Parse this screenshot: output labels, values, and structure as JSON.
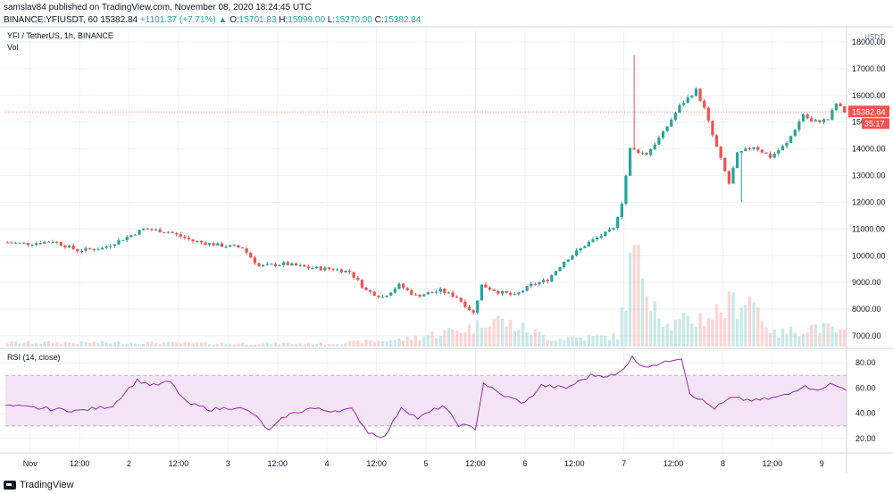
{
  "header": {
    "publisher_line": "samslav84 published on TradingView.com, November 08, 2020 18:24:45 UTC",
    "symbol": "BINANCE:YFIUSDT, 60",
    "last": "15382.84",
    "change": "+1101.37 (+7.71%)",
    "open_label": "O:",
    "open": "15701.83",
    "high_label": "H:",
    "high": "15999.00",
    "low_label": "L:",
    "low": "15270.00",
    "close_label": "C:",
    "close": "15382.84"
  },
  "legend": {
    "title": "YFI / TetherUS, 1h, BINANCE",
    "volume": "Vol",
    "rsi": "RSI (14, close)"
  },
  "price_axis": {
    "currency": "USDT",
    "last_price_label": "15382.84",
    "countdown_label": "35:17",
    "tick_labels": [
      "18000.00",
      "17000.00",
      "16000.00",
      "15000.00",
      "14000.00",
      "13000.00",
      "12000.00",
      "11000.00",
      "10000.00",
      "9000.00",
      "8000.00",
      "7000.00"
    ]
  },
  "rsi_axis": {
    "tick_labels": [
      "80.00",
      "60.00",
      "40.00",
      "20.00"
    ]
  },
  "time_axis": {
    "tick_labels": [
      "Nov",
      "12:00",
      "2",
      "12:00",
      "3",
      "12:00",
      "4",
      "12:00",
      "5",
      "12:00",
      "6",
      "12:00",
      "7",
      "12:00",
      "8",
      "12:00",
      "9"
    ]
  },
  "footer": {
    "brand": "TradingView"
  },
  "colors": {
    "up": "#26a69a",
    "down": "#ef5350",
    "rsi_line": "#9c27b0",
    "rsi_band": "#f3e5f5",
    "grid": "#f0f3fa"
  },
  "chart_data": {
    "type": "candlestick",
    "interval": "1h",
    "x_range": [
      "Oct 31 18:00",
      "Nov 9 06:00"
    ],
    "price_range": [
      6600,
      18500
    ],
    "last_price": 15382.84,
    "rsi_range": [
      10,
      90
    ],
    "rsi_band": [
      30,
      70
    ],
    "price_series": [
      [
        "Oct 31 18:00",
        10500
      ],
      [
        "Nov 1 00:00",
        10450
      ],
      [
        "Nov 1 06:00",
        10550
      ],
      [
        "Nov 1 12:00",
        10200
      ],
      [
        "Nov 1 18:00",
        10280
      ],
      [
        "Nov 2 00:00",
        10700
      ],
      [
        "Nov 2 04:00",
        11000
      ],
      [
        "Nov 2 10:00",
        10900
      ],
      [
        "Nov 2 16:00",
        10550
      ],
      [
        "Nov 2 22:00",
        10400
      ],
      [
        "Nov 3 04:00",
        10300
      ],
      [
        "Nov 3 08:00",
        9600
      ],
      [
        "Nov 3 14:00",
        9700
      ],
      [
        "Nov 3 20:00",
        9550
      ],
      [
        "Nov 4 02:00",
        9500
      ],
      [
        "Nov 4 06:00",
        9400
      ],
      [
        "Nov 4 10:00",
        8700
      ],
      [
        "Nov 4 14:00",
        8450
      ],
      [
        "Nov 4 18:00",
        8900
      ],
      [
        "Nov 4 22:00",
        8500
      ],
      [
        "Nov 5 04:00",
        8700
      ],
      [
        "Nov 5 08:00",
        8450
      ],
      [
        "Nov 5 12:00",
        7850
      ],
      [
        "Nov 5 14:00",
        8900
      ],
      [
        "Nov 5 18:00",
        8650
      ],
      [
        "Nov 5 22:00",
        8500
      ],
      [
        "Nov 6 02:00",
        8900
      ],
      [
        "Nov 6 06:00",
        9100
      ],
      [
        "Nov 6 10:00",
        9800
      ],
      [
        "Nov 6 16:00",
        10500
      ],
      [
        "Nov 6 22:00",
        11000
      ],
      [
        "Nov 7 00:00",
        12000
      ],
      [
        "Nov 7 02:00",
        14000
      ],
      [
        "Nov 7 06:00",
        13800
      ],
      [
        "Nov 7 10:00",
        14600
      ],
      [
        "Nov 7 14:00",
        15600
      ],
      [
        "Nov 7 18:00",
        16200
      ],
      [
        "Nov 7 20:00",
        15500
      ],
      [
        "Nov 7 22:00",
        14500
      ],
      [
        "Nov 8 02:00",
        12700
      ],
      [
        "Nov 8 04:00",
        13800
      ],
      [
        "Nov 8 08:00",
        14100
      ],
      [
        "Nov 8 12:00",
        13700
      ],
      [
        "Nov 8 16:00",
        14200
      ],
      [
        "Nov 8 20:00",
        15300
      ],
      [
        "Nov 8 22:00",
        15000
      ],
      [
        "Nov 9 02:00",
        15100
      ],
      [
        "Nov 9 04:00",
        15700
      ],
      [
        "Nov 9 06:00",
        15382.84
      ]
    ],
    "price_extremes": [
      [
        "Nov 7 02:00",
        17500
      ],
      [
        "Nov 8 04:00",
        12000
      ]
    ],
    "volume_series": [
      [
        "Nov 1 00:00",
        0.04
      ],
      [
        "Nov 2 00:00",
        0.04
      ],
      [
        "Nov 3 00:00",
        0.03
      ],
      [
        "Nov 4 00:00",
        0.03
      ],
      [
        "Nov 4 18:00",
        0.07
      ],
      [
        "Nov 5 12:00",
        0.2
      ],
      [
        "Nov 5 14:00",
        0.3
      ],
      [
        "Nov 6 06:00",
        0.08
      ],
      [
        "Nov 6 22:00",
        0.1
      ],
      [
        "Nov 7 02:00",
        0.95
      ],
      [
        "Nov 7 10:00",
        0.2
      ],
      [
        "Nov 7 20:00",
        0.3
      ],
      [
        "Nov 8 06:00",
        0.5
      ],
      [
        "Nov 8 12:00",
        0.12
      ],
      [
        "Nov 8 22:00",
        0.2
      ],
      [
        "Nov 9 06:00",
        0.12
      ]
    ],
    "rsi_series": [
      [
        "Oct 31 18:00",
        46
      ],
      [
        "Nov 1 02:00",
        44
      ],
      [
        "Nov 1 12:00",
        42
      ],
      [
        "Nov 1 20:00",
        46
      ],
      [
        "Nov 2 00:00",
        60
      ],
      [
        "Nov 2 02:00",
        66
      ],
      [
        "Nov 2 06:00",
        62
      ],
      [
        "Nov 2 10:00",
        65
      ],
      [
        "Nov 2 14:00",
        48
      ],
      [
        "Nov 2 20:00",
        43
      ],
      [
        "Nov 3 02:00",
        45
      ],
      [
        "Nov 3 06:00",
        40
      ],
      [
        "Nov 3 10:00",
        26
      ],
      [
        "Nov 3 14:00",
        38
      ],
      [
        "Nov 3 20:00",
        44
      ],
      [
        "Nov 4 00:00",
        42
      ],
      [
        "Nov 4 06:00",
        43
      ],
      [
        "Nov 4 10:00",
        25
      ],
      [
        "Nov 4 14:00",
        21
      ],
      [
        "Nov 4 18:00",
        45
      ],
      [
        "Nov 4 22:00",
        36
      ],
      [
        "Nov 5 04:00",
        46
      ],
      [
        "Nov 5 08:00",
        31
      ],
      [
        "Nov 5 12:00",
        28
      ],
      [
        "Nov 5 14:00",
        64
      ],
      [
        "Nov 5 18:00",
        55
      ],
      [
        "Nov 6 00:00",
        48
      ],
      [
        "Nov 6 04:00",
        62
      ],
      [
        "Nov 6 10:00",
        60
      ],
      [
        "Nov 6 16:00",
        70
      ],
      [
        "Nov 6 22:00",
        70
      ],
      [
        "Nov 7 00:00",
        75
      ],
      [
        "Nov 7 02:00",
        86
      ],
      [
        "Nov 7 04:00",
        77
      ],
      [
        "Nov 7 10:00",
        80
      ],
      [
        "Nov 7 12:00",
        83
      ],
      [
        "Nov 7 14:00",
        84
      ],
      [
        "Nov 7 16:00",
        56
      ],
      [
        "Nov 7 22:00",
        44
      ],
      [
        "Nov 8 02:00",
        52
      ],
      [
        "Nov 8 08:00",
        50
      ],
      [
        "Nov 8 12:00",
        52
      ],
      [
        "Nov 8 16:00",
        55
      ],
      [
        "Nov 8 20:00",
        63
      ],
      [
        "Nov 8 22:00",
        58
      ],
      [
        "Nov 9 02:00",
        63
      ],
      [
        "Nov 9 06:00",
        59
      ]
    ]
  }
}
